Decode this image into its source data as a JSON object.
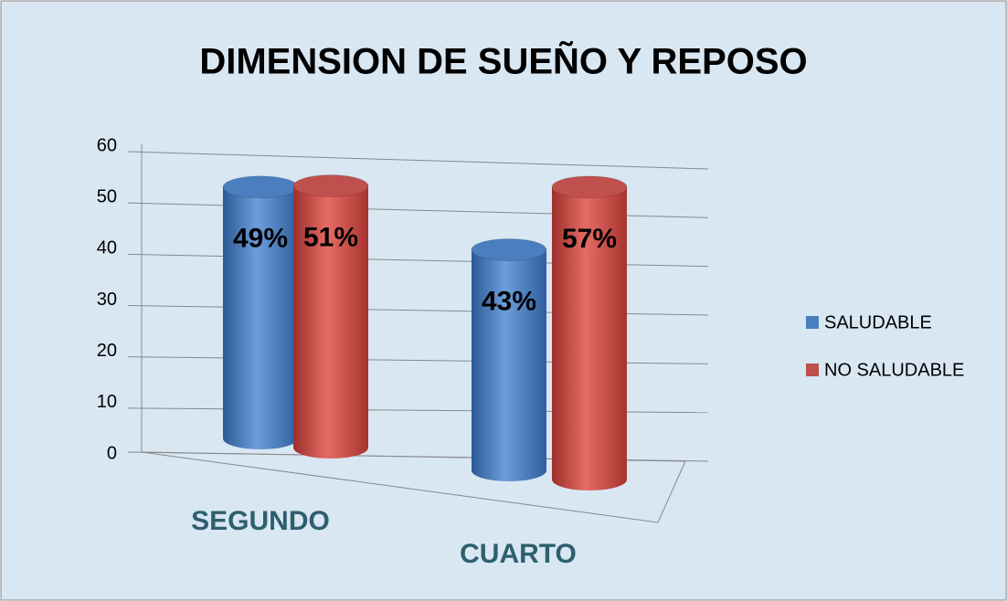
{
  "chart_data": {
    "type": "bar3d",
    "title": "DIMENSION DE SUEÑO Y REPOSO",
    "categories": [
      "SEGUNDO",
      "CUARTO"
    ],
    "series": [
      {
        "name": "SALUDABLE",
        "color": "#4a7ebf",
        "values": [
          49,
          43
        ],
        "value_labels": [
          "49%",
          "43%"
        ]
      },
      {
        "name": "NO SALUDABLE",
        "color": "#c0504d",
        "values": [
          51,
          57
        ],
        "value_labels": [
          "51%",
          "57%"
        ]
      }
    ],
    "ylim": [
      0,
      60
    ],
    "yticks": [
      0,
      10,
      20,
      30,
      40,
      50,
      60
    ],
    "grid": true,
    "legend": "right"
  }
}
